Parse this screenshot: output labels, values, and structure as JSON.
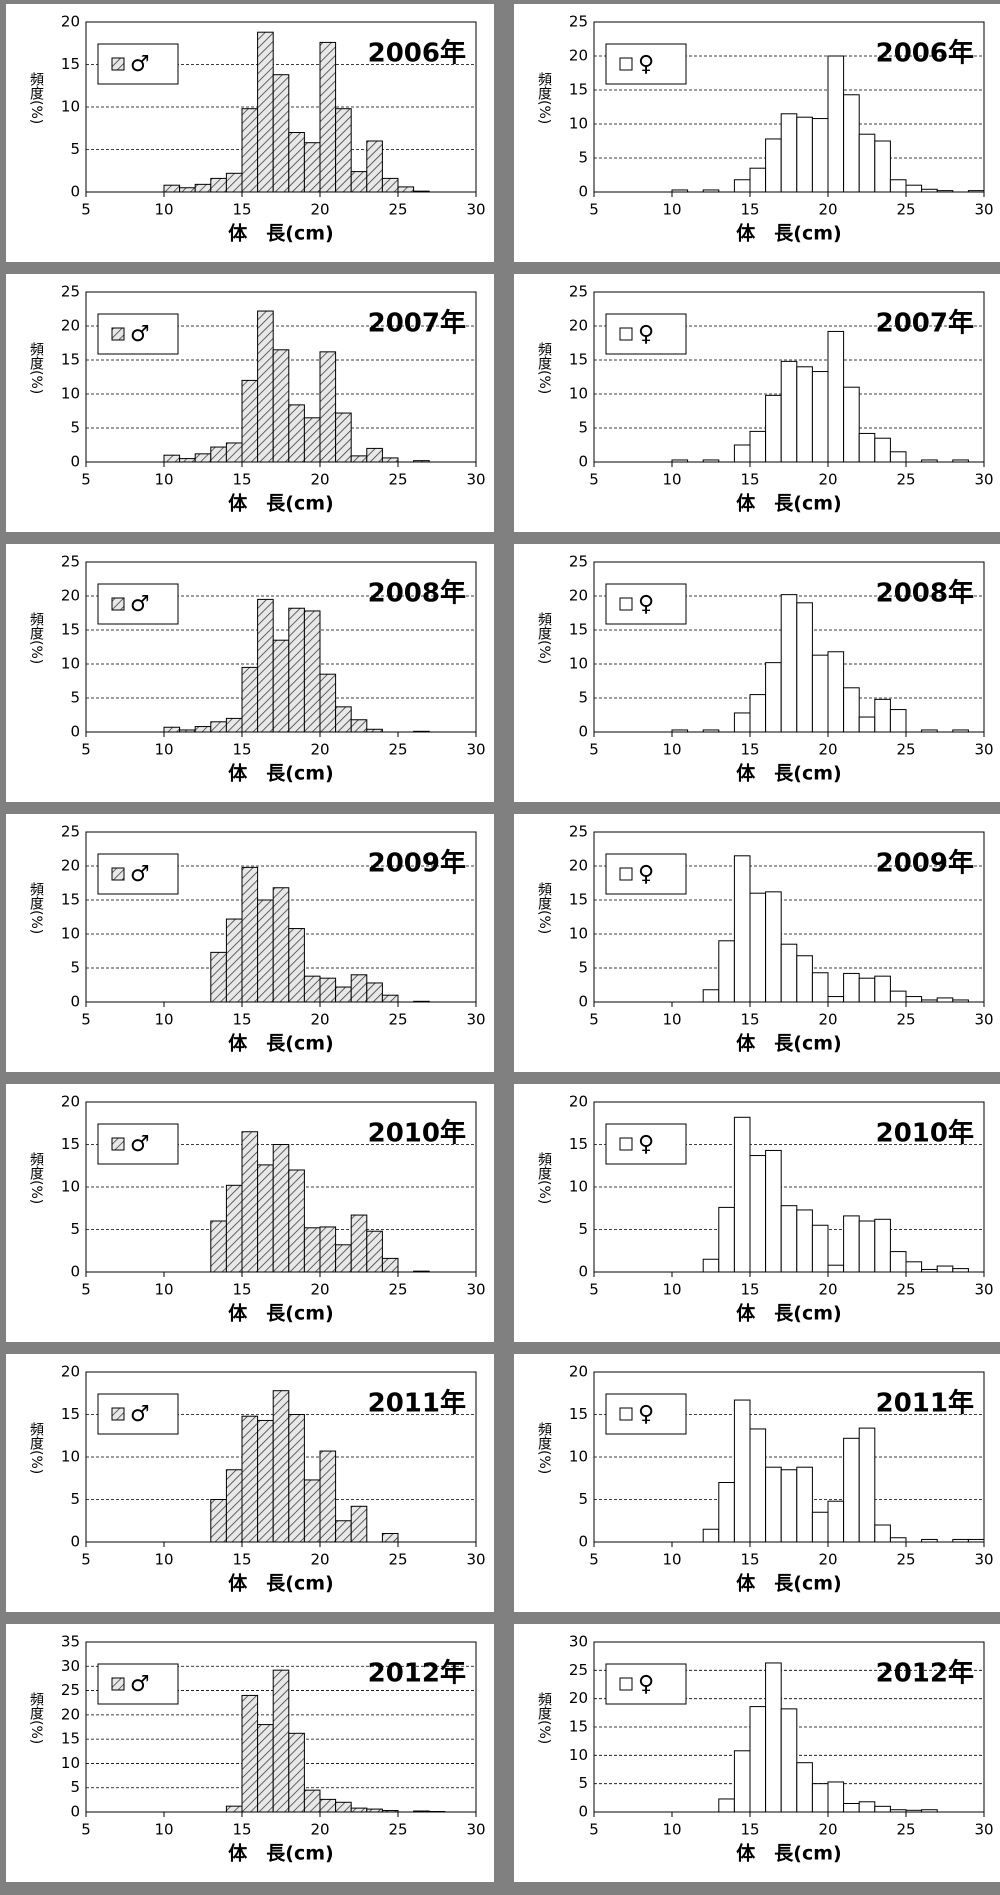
{
  "chart_data": [
    {
      "type": "histogram",
      "title": "2006年",
      "x_label": "体　長(cm)",
      "y_label": "頻度(%)",
      "bins": [
        10,
        11,
        12,
        13,
        14,
        15,
        16,
        17,
        18,
        19,
        20,
        21,
        22,
        23,
        24,
        25,
        26,
        27,
        28,
        29,
        30
      ],
      "series": [
        {
          "name": "♂",
          "color": "#d0d0d0",
          "hatch": true,
          "values": [
            0.8,
            0.5,
            0.9,
            1.6,
            2.2,
            9.8,
            18.8,
            13.8,
            7,
            5.8,
            17.6,
            9.8,
            2.4,
            6,
            1.6,
            0.6,
            0.1,
            0,
            0,
            0
          ]
        }
      ],
      "xlim": [
        5,
        30
      ],
      "xticks": [
        5,
        10,
        15,
        20,
        25,
        30
      ],
      "ylim": [
        0,
        20
      ],
      "yticks": [
        0,
        5,
        10,
        15,
        20
      ],
      "grid": true
    },
    {
      "type": "histogram",
      "title": "2006年",
      "x_label": "体　長(cm)",
      "y_label": "頻度(%)",
      "bins": [
        10,
        11,
        12,
        13,
        14,
        15,
        16,
        17,
        18,
        19,
        20,
        21,
        22,
        23,
        24,
        25,
        26,
        27,
        28,
        29,
        30
      ],
      "series": [
        {
          "name": "♀",
          "color": "#ffffff",
          "hatch": false,
          "values": [
            0.3,
            0,
            0.3,
            0,
            1.8,
            3.5,
            7.8,
            11.5,
            11,
            10.8,
            20,
            14.3,
            8.5,
            7.5,
            1.8,
            1,
            0.4,
            0.2,
            0,
            0.2
          ]
        }
      ],
      "xlim": [
        5,
        30
      ],
      "xticks": [
        5,
        10,
        15,
        20,
        25,
        30
      ],
      "ylim": [
        0,
        25
      ],
      "yticks": [
        0,
        5,
        10,
        15,
        20,
        25
      ],
      "grid": true
    },
    {
      "type": "histogram",
      "title": "2007年",
      "x_label": "体　長(cm)",
      "y_label": "頻度(%)",
      "bins": [
        10,
        11,
        12,
        13,
        14,
        15,
        16,
        17,
        18,
        19,
        20,
        21,
        22,
        23,
        24,
        25,
        26,
        27,
        28,
        29,
        30
      ],
      "series": [
        {
          "name": "♂",
          "color": "#d0d0d0",
          "hatch": true,
          "values": [
            1,
            0.5,
            1.2,
            2.2,
            2.8,
            12,
            22.2,
            16.5,
            8.4,
            6.5,
            16.2,
            7.2,
            0.9,
            2,
            0.6,
            0,
            0.2,
            0,
            0,
            0
          ]
        }
      ],
      "xlim": [
        5,
        30
      ],
      "xticks": [
        5,
        10,
        15,
        20,
        25,
        30
      ],
      "ylim": [
        0,
        25
      ],
      "yticks": [
        0,
        5,
        10,
        15,
        20,
        25
      ],
      "grid": true
    },
    {
      "type": "histogram",
      "title": "2007年",
      "x_label": "体　長(cm)",
      "y_label": "頻度(%)",
      "bins": [
        10,
        11,
        12,
        13,
        14,
        15,
        16,
        17,
        18,
        19,
        20,
        21,
        22,
        23,
        24,
        25,
        26,
        27,
        28,
        29,
        30
      ],
      "series": [
        {
          "name": "♀",
          "color": "#ffffff",
          "hatch": false,
          "values": [
            0.3,
            0,
            0.3,
            0,
            2.5,
            4.5,
            9.8,
            14.8,
            14,
            13.3,
            19.2,
            11,
            4.2,
            3.5,
            1.5,
            0,
            0.3,
            0,
            0.3,
            0
          ]
        }
      ],
      "xlim": [
        5,
        30
      ],
      "xticks": [
        5,
        10,
        15,
        20,
        25,
        30
      ],
      "ylim": [
        0,
        25
      ],
      "yticks": [
        0,
        5,
        10,
        15,
        20,
        25
      ],
      "grid": true
    },
    {
      "type": "histogram",
      "title": "2008年",
      "x_label": "体　長(cm)",
      "y_label": "頻度(%)",
      "bins": [
        10,
        11,
        12,
        13,
        14,
        15,
        16,
        17,
        18,
        19,
        20,
        21,
        22,
        23,
        24,
        25,
        26,
        27,
        28,
        29,
        30
      ],
      "series": [
        {
          "name": "♂",
          "color": "#d0d0d0",
          "hatch": true,
          "values": [
            0.7,
            0.3,
            0.8,
            1.5,
            2,
            9.5,
            19.5,
            13.5,
            18.2,
            17.8,
            8.5,
            3.7,
            1.8,
            0.4,
            0,
            0,
            0.1,
            0,
            0,
            0
          ]
        }
      ],
      "xlim": [
        5,
        30
      ],
      "xticks": [
        5,
        10,
        15,
        20,
        25,
        30
      ],
      "ylim": [
        0,
        25
      ],
      "yticks": [
        0,
        5,
        10,
        15,
        20,
        25
      ],
      "grid": true
    },
    {
      "type": "histogram",
      "title": "2008年",
      "x_label": "体　長(cm)",
      "y_label": "頻度(%)",
      "bins": [
        10,
        11,
        12,
        13,
        14,
        15,
        16,
        17,
        18,
        19,
        20,
        21,
        22,
        23,
        24,
        25,
        26,
        27,
        28,
        29,
        30
      ],
      "series": [
        {
          "name": "♀",
          "color": "#ffffff",
          "hatch": false,
          "values": [
            0.3,
            0,
            0.3,
            0,
            2.8,
            5.5,
            10.2,
            20.2,
            19,
            11.3,
            11.8,
            6.5,
            2.2,
            4.8,
            3.3,
            0,
            0.3,
            0,
            0.3,
            0
          ]
        }
      ],
      "xlim": [
        5,
        30
      ],
      "xticks": [
        5,
        10,
        15,
        20,
        25,
        30
      ],
      "ylim": [
        0,
        25
      ],
      "yticks": [
        0,
        5,
        10,
        15,
        20,
        25
      ],
      "grid": true
    },
    {
      "type": "histogram",
      "title": "2009年",
      "x_label": "体　長(cm)",
      "y_label": "頻度(%)",
      "bins": [
        10,
        11,
        12,
        13,
        14,
        15,
        16,
        17,
        18,
        19,
        20,
        21,
        22,
        23,
        24,
        25,
        26,
        27,
        28,
        29,
        30
      ],
      "series": [
        {
          "name": "♂",
          "color": "#d0d0d0",
          "hatch": true,
          "values": [
            0,
            0,
            0,
            7.3,
            12.2,
            19.8,
            15,
            16.8,
            10.8,
            3.8,
            3.5,
            2.2,
            4,
            2.8,
            1,
            0,
            0.1,
            0,
            0,
            0
          ]
        }
      ],
      "xlim": [
        5,
        30
      ],
      "xticks": [
        5,
        10,
        15,
        20,
        25,
        30
      ],
      "ylim": [
        0,
        25
      ],
      "yticks": [
        0,
        5,
        10,
        15,
        20,
        25
      ],
      "grid": true
    },
    {
      "type": "histogram",
      "title": "2009年",
      "x_label": "体　長(cm)",
      "y_label": "頻度(%)",
      "bins": [
        10,
        11,
        12,
        13,
        14,
        15,
        16,
        17,
        18,
        19,
        20,
        21,
        22,
        23,
        24,
        25,
        26,
        27,
        28,
        29,
        30
      ],
      "series": [
        {
          "name": "♀",
          "color": "#ffffff",
          "hatch": false,
          "values": [
            0,
            0,
            1.8,
            9,
            21.5,
            16,
            16.2,
            8.5,
            6.8,
            4.3,
            0.8,
            4.2,
            3.5,
            3.8,
            1.6,
            0.8,
            0.3,
            0.6,
            0.3,
            0
          ]
        }
      ],
      "xlim": [
        5,
        30
      ],
      "xticks": [
        5,
        10,
        15,
        20,
        25,
        30
      ],
      "ylim": [
        0,
        25
      ],
      "yticks": [
        0,
        5,
        10,
        15,
        20,
        25
      ],
      "grid": true
    },
    {
      "type": "histogram",
      "title": "2010年",
      "x_label": "体　長(cm)",
      "y_label": "頻度(%)",
      "bins": [
        10,
        11,
        12,
        13,
        14,
        15,
        16,
        17,
        18,
        19,
        20,
        21,
        22,
        23,
        24,
        25,
        26,
        27,
        28,
        29,
        30
      ],
      "series": [
        {
          "name": "♂",
          "color": "#d0d0d0",
          "hatch": true,
          "values": [
            0,
            0,
            0,
            6,
            10.2,
            16.5,
            12.6,
            15,
            12,
            5.2,
            5.3,
            3.2,
            6.7,
            4.8,
            1.6,
            0,
            0.1,
            0,
            0,
            0
          ]
        }
      ],
      "xlim": [
        5,
        30
      ],
      "xticks": [
        5,
        10,
        15,
        20,
        25,
        30
      ],
      "ylim": [
        0,
        20
      ],
      "yticks": [
        0,
        5,
        10,
        15,
        20
      ],
      "grid": true
    },
    {
      "type": "histogram",
      "title": "2010年",
      "x_label": "体　長(cm)",
      "y_label": "頻度(%)",
      "bins": [
        10,
        11,
        12,
        13,
        14,
        15,
        16,
        17,
        18,
        19,
        20,
        21,
        22,
        23,
        24,
        25,
        26,
        27,
        28,
        29,
        30
      ],
      "series": [
        {
          "name": "♀",
          "color": "#ffffff",
          "hatch": false,
          "values": [
            0,
            0,
            1.5,
            7.6,
            18.2,
            13.7,
            14.3,
            7.8,
            7.3,
            5.5,
            0.8,
            6.6,
            6,
            6.2,
            2.4,
            1.2,
            0.3,
            0.7,
            0.4,
            0
          ]
        }
      ],
      "xlim": [
        5,
        30
      ],
      "xticks": [
        5,
        10,
        15,
        20,
        25,
        30
      ],
      "ylim": [
        0,
        20
      ],
      "yticks": [
        0,
        5,
        10,
        15,
        20
      ],
      "grid": true
    },
    {
      "type": "histogram",
      "title": "2011年",
      "x_label": "体　長(cm)",
      "y_label": "頻度(%)",
      "bins": [
        10,
        11,
        12,
        13,
        14,
        15,
        16,
        17,
        18,
        19,
        20,
        21,
        22,
        23,
        24,
        25,
        26,
        27,
        28,
        29,
        30
      ],
      "series": [
        {
          "name": "♂",
          "color": "#d0d0d0",
          "hatch": true,
          "values": [
            0,
            0,
            0,
            5,
            8.5,
            14.8,
            14.3,
            17.8,
            15,
            7.3,
            10.7,
            2.5,
            4.2,
            0,
            1,
            0,
            0,
            0,
            0,
            0
          ]
        }
      ],
      "xlim": [
        5,
        30
      ],
      "xticks": [
        5,
        10,
        15,
        20,
        25,
        30
      ],
      "ylim": [
        0,
        20
      ],
      "yticks": [
        0,
        5,
        10,
        15,
        20
      ],
      "grid": true
    },
    {
      "type": "histogram",
      "title": "2011年",
      "x_label": "体　長(cm)",
      "y_label": "頻度(%)",
      "bins": [
        10,
        11,
        12,
        13,
        14,
        15,
        16,
        17,
        18,
        19,
        20,
        21,
        22,
        23,
        24,
        25,
        26,
        27,
        28,
        29,
        30
      ],
      "series": [
        {
          "name": "♀",
          "color": "#ffffff",
          "hatch": false,
          "values": [
            0,
            0,
            1.5,
            7,
            16.7,
            13.3,
            8.8,
            8.5,
            8.8,
            3.5,
            4.8,
            12.2,
            13.4,
            2,
            0.5,
            0,
            0.3,
            0,
            0.3,
            0.3
          ]
        }
      ],
      "xlim": [
        5,
        30
      ],
      "xticks": [
        5,
        10,
        15,
        20,
        25,
        30
      ],
      "ylim": [
        0,
        20
      ],
      "yticks": [
        0,
        5,
        10,
        15,
        20
      ],
      "grid": true
    },
    {
      "type": "histogram",
      "title": "2012年",
      "x_label": "体　長(cm)",
      "y_label": "頻度(%)",
      "bins": [
        10,
        11,
        12,
        13,
        14,
        15,
        16,
        17,
        18,
        19,
        20,
        21,
        22,
        23,
        24,
        25,
        26,
        27,
        28,
        29,
        30
      ],
      "series": [
        {
          "name": "♂",
          "color": "#d0d0d0",
          "hatch": true,
          "values": [
            0,
            0,
            0,
            0,
            1.2,
            24,
            18,
            29.2,
            16.2,
            4.5,
            2.6,
            2,
            0.8,
            0.6,
            0.3,
            0,
            0.2,
            0.1,
            0,
            0
          ]
        }
      ],
      "xlim": [
        5,
        30
      ],
      "xticks": [
        5,
        10,
        15,
        20,
        25,
        30
      ],
      "ylim": [
        0,
        35
      ],
      "yticks": [
        0,
        5,
        10,
        15,
        20,
        25,
        30,
        35
      ],
      "grid": true
    },
    {
      "type": "histogram",
      "title": "2012年",
      "x_label": "体　長(cm)",
      "y_label": "頻度(%)",
      "bins": [
        10,
        11,
        12,
        13,
        14,
        15,
        16,
        17,
        18,
        19,
        20,
        21,
        22,
        23,
        24,
        25,
        26,
        27,
        28,
        29,
        30
      ],
      "series": [
        {
          "name": "♀",
          "color": "#ffffff",
          "hatch": false,
          "values": [
            0,
            0,
            0,
            2.3,
            10.8,
            18.6,
            26.3,
            18.2,
            8.7,
            5,
            5.3,
            1.5,
            1.8,
            1,
            0.4,
            0.3,
            0.4,
            0,
            0,
            0
          ]
        }
      ],
      "xlim": [
        5,
        30
      ],
      "xticks": [
        5,
        10,
        15,
        20,
        25,
        30
      ],
      "ylim": [
        0,
        30
      ],
      "yticks": [
        0,
        5,
        10,
        15,
        20,
        25,
        30
      ],
      "grid": true
    }
  ]
}
